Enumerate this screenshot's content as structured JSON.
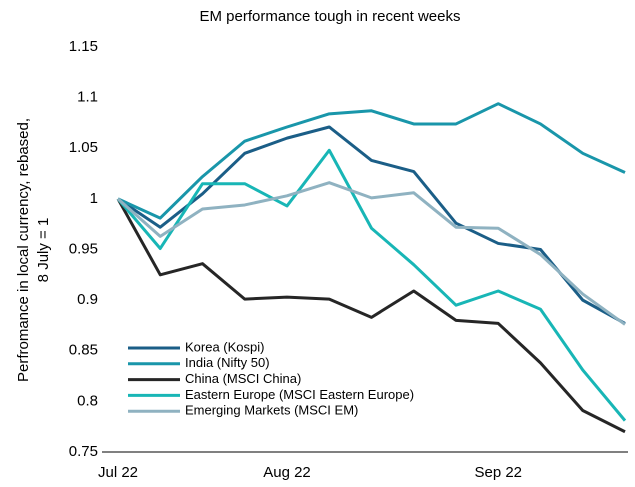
{
  "chart_data": {
    "type": "line",
    "title": "EM performance tough in recent weeks",
    "y_label": [
      "Perfromance in local currency, rebased,",
      "8 July = 1"
    ],
    "categories": [
      "Jul 22",
      null,
      null,
      null,
      "Aug 22",
      null,
      null,
      null,
      null,
      "Sep 22",
      null,
      null,
      null
    ],
    "series": [
      {
        "name": "Korea (Kospi)",
        "color": "#1b5e87",
        "values": [
          1,
          0.972,
          1.005,
          1.045,
          1.06,
          1.071,
          1.038,
          1.027,
          0.976,
          0.956,
          0.95,
          0.9,
          0.877
        ]
      },
      {
        "name": "India (Nifty 50)",
        "color": "#1996aa",
        "values": [
          1,
          0.981,
          1.022,
          1.057,
          1.071,
          1.084,
          1.087,
          1.074,
          1.074,
          1.094,
          1.074,
          1.045,
          1.026
        ]
      },
      {
        "name": "China (MSCI China)",
        "color": "#262626",
        "values": [
          1,
          0.925,
          0.936,
          0.901,
          0.903,
          0.901,
          0.883,
          0.909,
          0.88,
          0.877,
          0.838,
          0.791,
          0.77
        ]
      },
      {
        "name": "Eastern Europe (MSCI Eastern Europe)",
        "color": "#18b6b6",
        "values": [
          1,
          0.951,
          1.015,
          1.015,
          0.993,
          1.048,
          0.971,
          0.935,
          0.895,
          0.909,
          0.891,
          0.831,
          0.781
        ]
      },
      {
        "name": "Emerging Markets (MSCI EM)",
        "color": "#8fb2c1",
        "values": [
          1,
          0.963,
          0.99,
          0.994,
          1.003,
          1.016,
          1.001,
          1.006,
          0.972,
          0.971,
          0.945,
          0.906,
          0.876
        ]
      }
    ],
    "ylim": [
      0.75,
      1.15
    ],
    "yticks": [
      0.75,
      0.8,
      0.85,
      0.9,
      0.95,
      1,
      1.05,
      1.1,
      1.15
    ],
    "grid": false,
    "legend": "lower left"
  }
}
